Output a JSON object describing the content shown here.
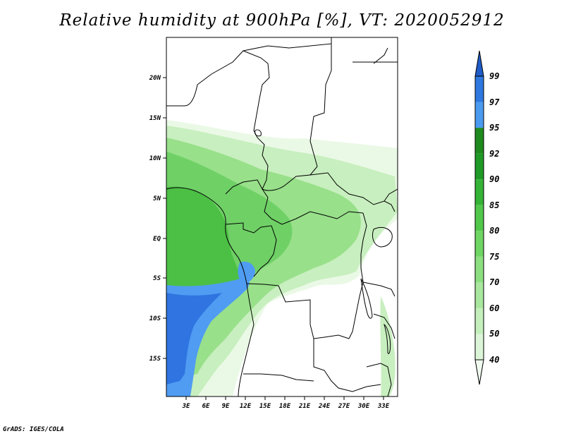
{
  "title": "Relative humidity at 900hPa [%], VT: 2020052912",
  "credit": "GrADS: IGES/COLA",
  "map": {
    "lat_labels": [
      "20N",
      "15N",
      "10N",
      "5N",
      "EQ",
      "5S",
      "10S",
      "15S"
    ],
    "lon_labels": [
      "3E",
      "6E",
      "9E",
      "12E",
      "15E",
      "18E",
      "21E",
      "24E",
      "27E",
      "30E",
      "33E"
    ]
  },
  "colorbar": {
    "levels": [
      "40",
      "50",
      "60",
      "70",
      "75",
      "80",
      "85",
      "90",
      "92",
      "95",
      "97",
      "99"
    ],
    "colors": [
      "#f0fbef",
      "#dcf5d8",
      "#c4efbc",
      "#a8e79d",
      "#8cdf80",
      "#6fd663",
      "#52c84a",
      "#35b336",
      "#1f9a26",
      "#1e8a1d",
      "#4a9af0",
      "#2f78e0",
      "#1f5cc8"
    ]
  },
  "shading_colors": {
    "white": "#ffffff",
    "pale": "#eaf9e6",
    "light": "#c8efbf",
    "mid": "#98e08a",
    "green": "#6fd066",
    "dark": "#4cbf45",
    "deep": "#2fa52d",
    "blue_light": "#4f9cf2",
    "blue": "#2f74e0"
  }
}
